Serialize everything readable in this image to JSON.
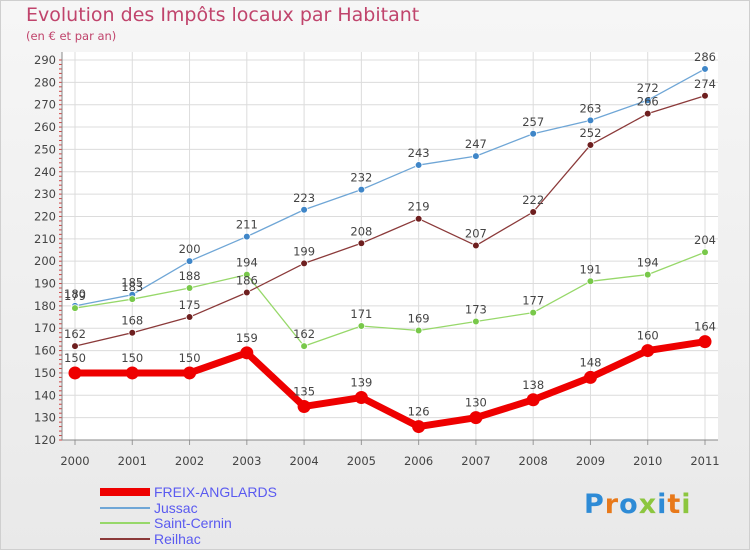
{
  "chart_data": {
    "type": "line",
    "title": "Evolution des Impôts locaux par Habitant",
    "subtitle": "(en € et par an)",
    "xlabel": "",
    "ylabel": "",
    "x": [
      "2000",
      "2001",
      "2002",
      "2003",
      "2004",
      "2005",
      "2006",
      "2007",
      "2008",
      "2009",
      "2010",
      "2011"
    ],
    "ylim": [
      120,
      290
    ],
    "yticks": [
      120,
      130,
      140,
      150,
      160,
      170,
      180,
      190,
      200,
      210,
      220,
      230,
      240,
      250,
      260,
      270,
      280,
      290
    ],
    "grid": true,
    "legend_position": "bottom-left",
    "series": [
      {
        "name": "Jussac",
        "color": "#6fa6d6",
        "marker": "#3f86c8",
        "values": [
          180,
          185,
          200,
          211,
          223,
          232,
          243,
          247,
          257,
          263,
          272,
          286
        ]
      },
      {
        "name": "Saint-Cernin",
        "color": "#97d86a",
        "marker": "#78c84a",
        "values": [
          179,
          183,
          188,
          194,
          162,
          171,
          169,
          173,
          177,
          191,
          194,
          204
        ]
      },
      {
        "name": "Reilhac",
        "color": "#8b3a3a",
        "marker": "#6e1f1f",
        "values": [
          162,
          168,
          175,
          186,
          199,
          208,
          219,
          207,
          222,
          252,
          266,
          274
        ]
      },
      {
        "name": "FREIX-ANGLARDS",
        "color": "#ee0000",
        "marker": "#ee0000",
        "values": [
          150,
          150,
          150,
          159,
          135,
          139,
          126,
          130,
          138,
          148,
          160,
          164
        ]
      }
    ],
    "legend_order": [
      "FREIX-ANGLARDS",
      "Jussac",
      "Saint-Cernin",
      "Reilhac"
    ]
  },
  "logo": {
    "text": "Proxiti",
    "colors": [
      "#2e8bd6",
      "#e8791a",
      "#2e8bd6",
      "#8cc63f",
      "#2e8bd6",
      "#e8791a",
      "#8cc63f"
    ]
  }
}
